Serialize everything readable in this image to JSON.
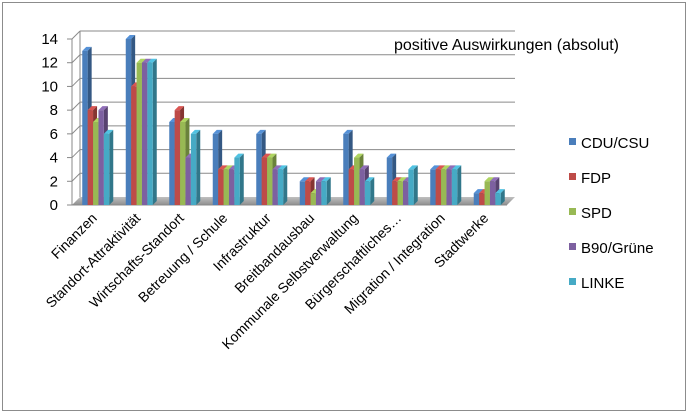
{
  "chart_data": {
    "type": "bar",
    "title": "positive Auswirkungen (absolut)",
    "xlabel": "",
    "ylabel": "",
    "ylim": [
      0,
      14
    ],
    "yticks": [
      0,
      2,
      4,
      6,
      8,
      10,
      12,
      14
    ],
    "grid": true,
    "legend_position": "right",
    "categories": [
      "Finanzen",
      "Standort-Attraktivität",
      "Wirtschafts-Standort",
      "Betreuung / Schule",
      "Infrastruktur",
      "Breitbandausbau",
      "Kommunale Selbstverwaltung",
      "Bürgerschaftliches…",
      "Migration / Integration",
      "Stadtwerke"
    ],
    "series": [
      {
        "name": "CDU/CSU",
        "color": "#4a7ebb",
        "values": [
          13,
          14,
          7,
          6,
          6,
          2,
          6,
          4,
          3,
          1
        ]
      },
      {
        "name": "FDP",
        "color": "#be4b48",
        "values": [
          8,
          10,
          8,
          3,
          4,
          2,
          3,
          2,
          3,
          1
        ]
      },
      {
        "name": "SPD",
        "color": "#98b954",
        "values": [
          7,
          12,
          7,
          3,
          4,
          1,
          4,
          2,
          3,
          2
        ]
      },
      {
        "name": "B90/Grüne",
        "color": "#7d60a0",
        "values": [
          8,
          12,
          4,
          3,
          3,
          2,
          3,
          2,
          3,
          2
        ]
      },
      {
        "name": "LINKE",
        "color": "#46aac5",
        "values": [
          6,
          12,
          6,
          4,
          3,
          2,
          2,
          3,
          3,
          1
        ]
      }
    ]
  }
}
